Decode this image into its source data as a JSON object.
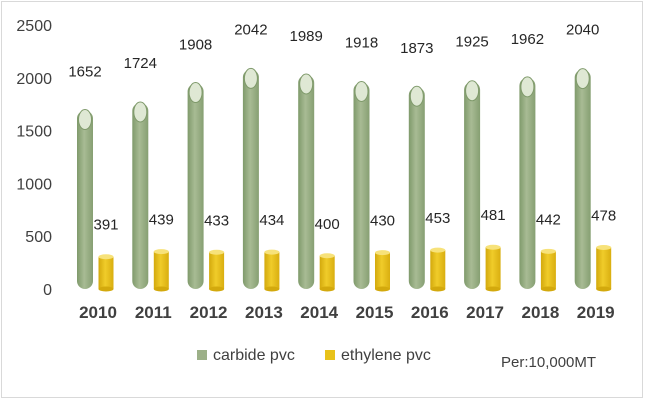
{
  "chart_data": {
    "type": "bar",
    "categories": [
      "2010",
      "2011",
      "2012",
      "2013",
      "2014",
      "2015",
      "2016",
      "2017",
      "2018",
      "2019"
    ],
    "series": [
      {
        "name": "carbide pvc",
        "values": [
          1652,
          1724,
          1908,
          2042,
          1989,
          1918,
          1873,
          1925,
          1962,
          2040
        ]
      },
      {
        "name": "ethylene pvc",
        "values": [
          391,
          439,
          433,
          434,
          400,
          430,
          453,
          481,
          442,
          478
        ]
      }
    ],
    "ylim": [
      0,
      2500
    ],
    "yticks": [
      0,
      500,
      1000,
      1500,
      2000,
      2500
    ],
    "grid": false,
    "legend": "bottom",
    "unit_note": "Per:10,000MT",
    "colors": {
      "carbide_pvc": "#9cb088",
      "carbide_pvc_dark": "#7f9a6b",
      "carbide_pvc_top": "#dfe8d4",
      "ethylene_pvc": "#e8c21a",
      "ethylene_pvc_dark": "#d3a90d",
      "ethylene_pvc_top": "#f7e27a"
    }
  }
}
